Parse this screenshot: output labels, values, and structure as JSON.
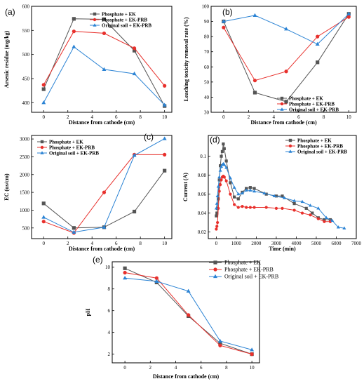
{
  "chart_data": [
    {
      "id": "a",
      "panel_label": "(a)",
      "type": "line",
      "xlabel": "Distance from cathode (cm)",
      "ylabel": "Arsenic residue (mg/kg)",
      "xlim": [
        -1,
        10.6
      ],
      "ylim": [
        380,
        600
      ],
      "xticks": [
        0,
        2,
        4,
        6,
        8,
        10
      ],
      "yticks": [
        400,
        450,
        500,
        550,
        600
      ],
      "legend_position": "top-right",
      "series": [
        {
          "name": "Phosphate + EK",
          "color": "#555555",
          "marker": "square",
          "x": [
            0,
            2.5,
            5,
            7.5,
            10
          ],
          "y": [
            428,
            574,
            573,
            508,
            393
          ]
        },
        {
          "name": "Phosphate + EK-PRB",
          "color": "#e8302c",
          "marker": "circle",
          "x": [
            0,
            2.5,
            5,
            7.5,
            10
          ],
          "y": [
            437,
            548,
            544,
            513,
            435
          ]
        },
        {
          "name": "Original soil + EK-PRB",
          "color": "#2b83d4",
          "marker": "triangle",
          "x": [
            0,
            2.5,
            5,
            7.5,
            10
          ],
          "y": [
            400,
            516,
            469,
            460,
            395
          ]
        }
      ]
    },
    {
      "id": "b",
      "panel_label": "(b)",
      "type": "line",
      "xlabel": "Distance from cathode (cm)",
      "ylabel": "Leaching toxicity removal rate (%)",
      "xlim": [
        -1,
        10.6
      ],
      "ylim": [
        30,
        100
      ],
      "xticks": [
        0,
        2,
        4,
        6,
        8,
        10
      ],
      "yticks": [
        30,
        40,
        50,
        60,
        70,
        80,
        90,
        100
      ],
      "legend_position": "bottom-right",
      "series": [
        {
          "name": "Phosphate + EK",
          "color": "#555555",
          "marker": "square",
          "x": [
            0,
            2.5,
            5,
            7.5,
            10
          ],
          "y": [
            90,
            43,
            37,
            63,
            95
          ]
        },
        {
          "name": "Phosphate + EK-PRB",
          "color": "#e8302c",
          "marker": "circle",
          "x": [
            0,
            2.5,
            5,
            7.5,
            10
          ],
          "y": [
            86,
            51,
            57,
            80,
            93
          ]
        },
        {
          "name": "Original soil + EK-PRB",
          "color": "#2b83d4",
          "marker": "triangle",
          "x": [
            0,
            2.5,
            5,
            7.5,
            10
          ],
          "y": [
            90,
            94,
            85,
            75,
            95
          ]
        }
      ]
    },
    {
      "id": "c",
      "panel_label": "(c)",
      "type": "line",
      "xlabel": "Distance from cathode (cm)",
      "ylabel": "EC (us/cm)",
      "xlim": [
        -1,
        10.6
      ],
      "ylim": [
        200,
        3100
      ],
      "xticks": [
        0,
        2,
        4,
        6,
        8,
        10
      ],
      "yticks": [
        500,
        1000,
        1500,
        2000,
        2500,
        3000
      ],
      "legend_position": "top-left",
      "series": [
        {
          "name": "Phosphate + EK",
          "color": "#555555",
          "marker": "square",
          "x": [
            0,
            2.5,
            5,
            7.5,
            10
          ],
          "y": [
            1190,
            500,
            520,
            960,
            2110
          ]
        },
        {
          "name": "Phosphate + EK-PRB",
          "color": "#e8302c",
          "marker": "circle",
          "x": [
            0,
            2.5,
            5,
            7.5,
            10
          ],
          "y": [
            680,
            360,
            1500,
            2560,
            2560
          ]
        },
        {
          "name": "Original soil + EK-PRB",
          "color": "#2b83d4",
          "marker": "triangle",
          "x": [
            0,
            2.5,
            5,
            7.5,
            10
          ],
          "y": [
            800,
            380,
            520,
            2540,
            3010
          ]
        }
      ]
    },
    {
      "id": "d",
      "panel_label": "(d)",
      "type": "line",
      "xlabel": "Time (min)",
      "ylabel": "Current (A)",
      "xlim": [
        -400,
        7000
      ],
      "ylim": [
        0.013,
        0.122
      ],
      "xticks": [
        0,
        1000,
        2000,
        3000,
        4000,
        5000,
        6000,
        7000
      ],
      "yticks": [
        0.02,
        0.04,
        0.06,
        0.08,
        0.1
      ],
      "legend_position": "top-right",
      "series": [
        {
          "name": "Phosphate + EK",
          "color": "#555555",
          "marker": "square",
          "x": [
            0,
            30,
            60,
            100,
            150,
            200,
            250,
            300,
            350,
            400,
            500,
            700,
            900,
            1100,
            1300,
            1500,
            1700,
            1900,
            2500,
            3000,
            3300,
            3900,
            4500,
            4800,
            5100,
            5400,
            5700
          ],
          "y": [
            0.037,
            0.04,
            0.045,
            0.055,
            0.075,
            0.09,
            0.1,
            0.105,
            0.113,
            0.108,
            0.095,
            0.072,
            0.057,
            0.055,
            0.062,
            0.066,
            0.067,
            0.066,
            0.06,
            0.058,
            0.058,
            0.05,
            0.045,
            0.04,
            0.035,
            0.033,
            0.033
          ]
        },
        {
          "name": "Phosphate + EK-PRB",
          "color": "#e8302c",
          "marker": "circle",
          "x": [
            0,
            30,
            60,
            100,
            150,
            200,
            250,
            300,
            350,
            400,
            500,
            700,
            900,
            1100,
            1300,
            1500,
            1700,
            1900,
            2500,
            3000,
            3300,
            3900,
            4300,
            4700,
            5100,
            5400,
            5700
          ],
          "y": [
            0.023,
            0.026,
            0.03,
            0.045,
            0.063,
            0.07,
            0.075,
            0.078,
            0.079,
            0.078,
            0.074,
            0.06,
            0.049,
            0.046,
            0.047,
            0.046,
            0.046,
            0.046,
            0.046,
            0.045,
            0.045,
            0.043,
            0.04,
            0.038,
            0.034,
            0.031,
            0.031
          ]
        },
        {
          "name": "Original soil + EK-PRB",
          "color": "#2b83d4",
          "marker": "triangle",
          "x": [
            0,
            30,
            60,
            100,
            150,
            200,
            250,
            300,
            350,
            400,
            500,
            700,
            900,
            1100,
            1300,
            1500,
            1700,
            1900,
            2400,
            2900,
            3400,
            3900,
            4300,
            4700,
            5100,
            5500,
            5800,
            6100,
            6400
          ],
          "y": [
            0.045,
            0.05,
            0.058,
            0.068,
            0.078,
            0.085,
            0.089,
            0.091,
            0.092,
            0.091,
            0.088,
            0.077,
            0.067,
            0.06,
            0.061,
            0.064,
            0.064,
            0.063,
            0.061,
            0.058,
            0.056,
            0.053,
            0.052,
            0.048,
            0.045,
            0.035,
            0.032,
            0.025,
            0.024
          ]
        }
      ]
    },
    {
      "id": "e",
      "panel_label": "(e)",
      "type": "line",
      "xlabel": "Distance from cathode (cm)",
      "ylabel": "pH",
      "xlim": [
        -1,
        10.6
      ],
      "ylim": [
        1.2,
        10.5
      ],
      "xticks": [
        0,
        2,
        4,
        6,
        8,
        10
      ],
      "yticks": [
        2,
        4,
        6,
        8,
        10
      ],
      "legend_position": "top-right",
      "series": [
        {
          "name": "Phosphate + EK",
          "color": "#555555",
          "marker": "square",
          "x": [
            0,
            2.5,
            5,
            7.5,
            10
          ],
          "y": [
            9.9,
            8.6,
            5.5,
            3.0,
            2.0
          ]
        },
        {
          "name": "Phosphate + EK-PRB",
          "color": "#e8302c",
          "marker": "circle",
          "x": [
            0,
            2.5,
            5,
            7.5,
            10
          ],
          "y": [
            9.5,
            9.0,
            5.6,
            2.8,
            2.0
          ]
        },
        {
          "name": "Original soil + EK-PRB",
          "color": "#2b83d4",
          "marker": "triangle",
          "x": [
            0,
            2.5,
            5,
            7.5,
            10
          ],
          "y": [
            9.0,
            8.7,
            7.8,
            3.2,
            2.4
          ]
        }
      ]
    }
  ]
}
